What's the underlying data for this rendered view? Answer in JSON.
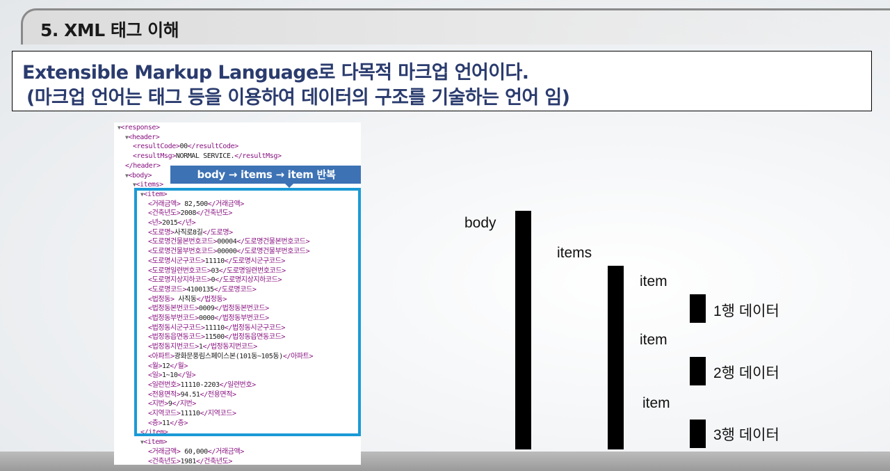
{
  "section": {
    "title": "5. XML 태그 이해"
  },
  "definition": {
    "line1": "Extensible Markup Language로 다목적 마크업 언어이다.",
    "line2": "(마크업 언어는 태그 등을 이용하여 데이터의 구조를 기술하는 언어 임)"
  },
  "xml": {
    "banner": "body → items → item 반복",
    "lines": [
      "<response>",
      "<header>",
      "<resultCode>00</resultCode>",
      "<resultMsg>NORMAL SERVICE.</resultMsg>",
      "</header>",
      "<body>",
      "<items>",
      "<item>",
      "<거래금액> 82,500</거래금액>",
      "<건축년도>2008</건축년도>",
      "<년>2015</년>",
      "<도로명>사직로8길</도로명>",
      "<도로명건물본번호코드>00004</도로명건물본번호코드>",
      "<도로명건물부번호코드>00000</도로명건물부번호코드>",
      "<도로명시군구코드>11110</도로명시군구코드>",
      "<도로명일련번호코드>03</도로명일련번호코드>",
      "<도로명지상지하코드>0</도로명지상지하코드>",
      "<도로명코드>4100135</도로명코드>",
      "<법정동> 사직동</법정동>",
      "<법정동본번코드>0009</법정동본번코드>",
      "<법정동부번코드>0000</법정동부번코드>",
      "<법정동시군구코드>11110</법정동시군구코드>",
      "<법정동읍면동코드>11500</법정동읍면동코드>",
      "<법정동지번코드>1</법정동지번코드>",
      "<아파트>광화문풍림스페이스본(101동~105동)</아파트>",
      "<월>12</월>",
      "<일>1~10</일>",
      "<일련번호>11110-2203</일련번호>",
      "<전용면적>94.51</전용면적>",
      "<지번>9</지번>",
      "<지역코드>11110</지역코드>",
      "<층>11</층>",
      "</item>",
      "<item>",
      "<거래금액> 60,000</거래금액>",
      "<건축년도>1981</건축년도>"
    ]
  },
  "hierarchy": {
    "body_label": "body",
    "items_label": "items",
    "item_labels": [
      "item",
      "item",
      "item"
    ],
    "row_labels": [
      "1행 데이터",
      "2행 데이터",
      "3행 데이터"
    ]
  }
}
